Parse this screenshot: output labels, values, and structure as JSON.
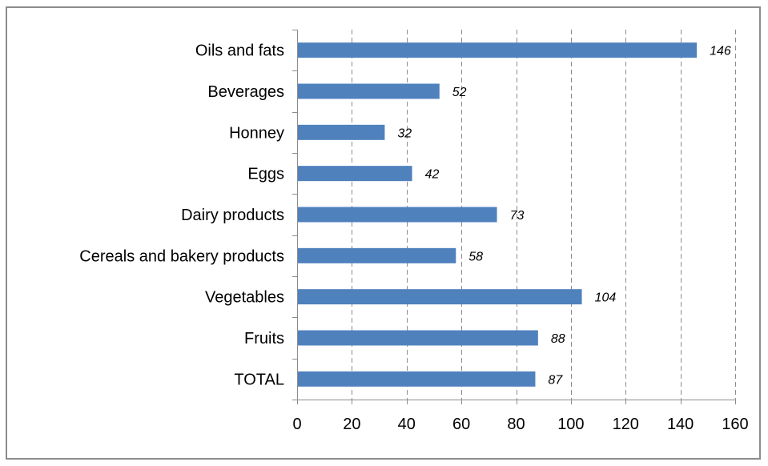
{
  "chart_data": {
    "type": "bar",
    "orientation": "horizontal",
    "categories": [
      "Oils and fats",
      "Beverages",
      "Honney",
      "Eggs",
      "Dairy products",
      "Cereals and bakery products",
      "Vegetables",
      "Fruits",
      "TOTAL"
    ],
    "values": [
      146,
      52,
      32,
      42,
      73,
      58,
      104,
      88,
      87
    ],
    "data_labels": [
      "146",
      "52",
      "32",
      "42",
      "73",
      "58",
      "104",
      "88",
      "87"
    ],
    "title": "",
    "xlabel": "",
    "ylabel": "",
    "xlim": [
      0,
      160
    ],
    "xticks": [
      0,
      20,
      40,
      60,
      80,
      100,
      120,
      140,
      160
    ],
    "xtick_labels": [
      "0",
      "20",
      "40",
      "60",
      "80",
      "100",
      "120",
      "140",
      "160"
    ],
    "grid": "vertical dashed",
    "legend": "none",
    "bar_color": "#4f81bd"
  }
}
